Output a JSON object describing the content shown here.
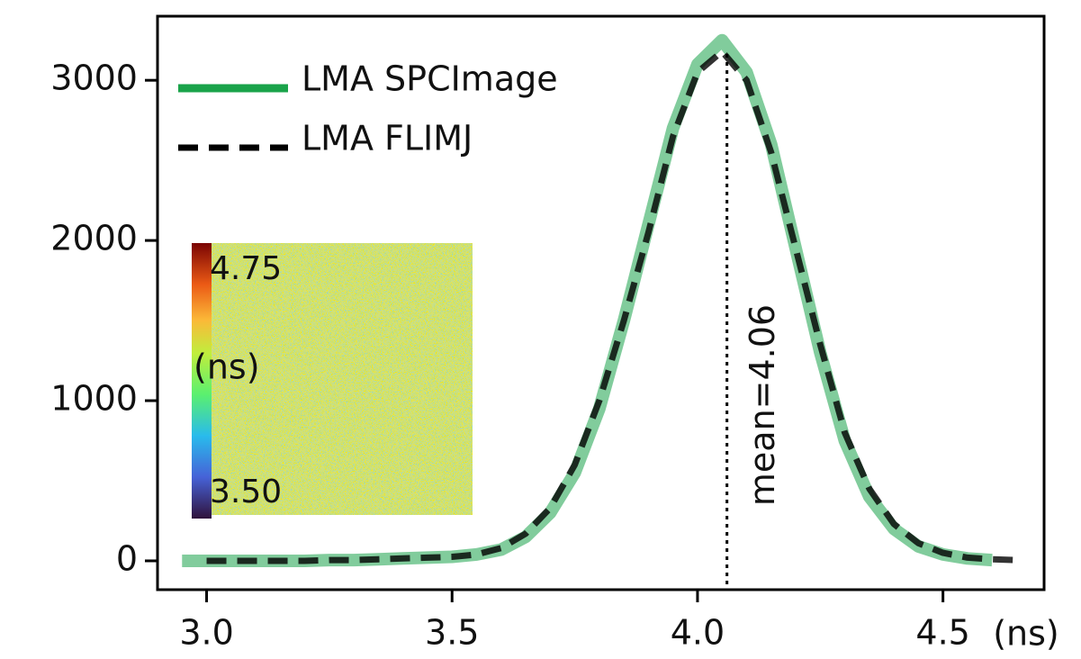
{
  "chart_data": {
    "type": "line",
    "xlabel": "(ns)",
    "x": [
      2.95,
      3.0,
      3.05,
      3.1,
      3.15,
      3.2,
      3.25,
      3.3,
      3.35,
      3.4,
      3.45,
      3.5,
      3.55,
      3.6,
      3.65,
      3.7,
      3.75,
      3.8,
      3.85,
      3.9,
      3.95,
      4.0,
      4.05,
      4.1,
      4.15,
      4.2,
      4.25,
      4.3,
      4.35,
      4.4,
      4.45,
      4.5,
      4.55,
      4.6,
      4.65
    ],
    "series": [
      {
        "name": "LMA SPCImage",
        "color": "#1aa34a",
        "style": "solid",
        "values": [
          0,
          0,
          0,
          0,
          0,
          0,
          5,
          5,
          10,
          15,
          20,
          25,
          40,
          70,
          150,
          300,
          550,
          950,
          1500,
          2100,
          2700,
          3100,
          3250,
          3050,
          2600,
          1950,
          1300,
          750,
          400,
          200,
          90,
          40,
          15,
          5,
          null
        ]
      },
      {
        "name": "LMA FLIMJ",
        "color": "#000000",
        "style": "dashed",
        "values": [
          null,
          0,
          0,
          0,
          0,
          0,
          5,
          5,
          10,
          15,
          20,
          25,
          40,
          80,
          170,
          330,
          600,
          1000,
          1500,
          2050,
          2650,
          3050,
          3180,
          3000,
          2550,
          1950,
          1350,
          800,
          450,
          230,
          110,
          50,
          20,
          10,
          5
        ]
      }
    ],
    "xlim": [
      2.9,
      4.706
    ],
    "ylim": [
      -180,
      3400
    ],
    "xticks": [
      {
        "value": 3,
        "label": "3.0"
      },
      {
        "value": 3.5,
        "label": "3.5"
      },
      {
        "value": 4,
        "label": "4.0"
      },
      {
        "value": 4.5,
        "label": "4.5"
      }
    ],
    "yticks": [
      0,
      1000,
      2000,
      3000
    ],
    "legend": "upper left",
    "grid": false,
    "mean_x": 4.06,
    "annotation": "mean=4.06",
    "inset": {
      "cbar_max_label": "4.75",
      "cbar_unit": "(ns)",
      "cbar_min_label": "3.50"
    }
  }
}
